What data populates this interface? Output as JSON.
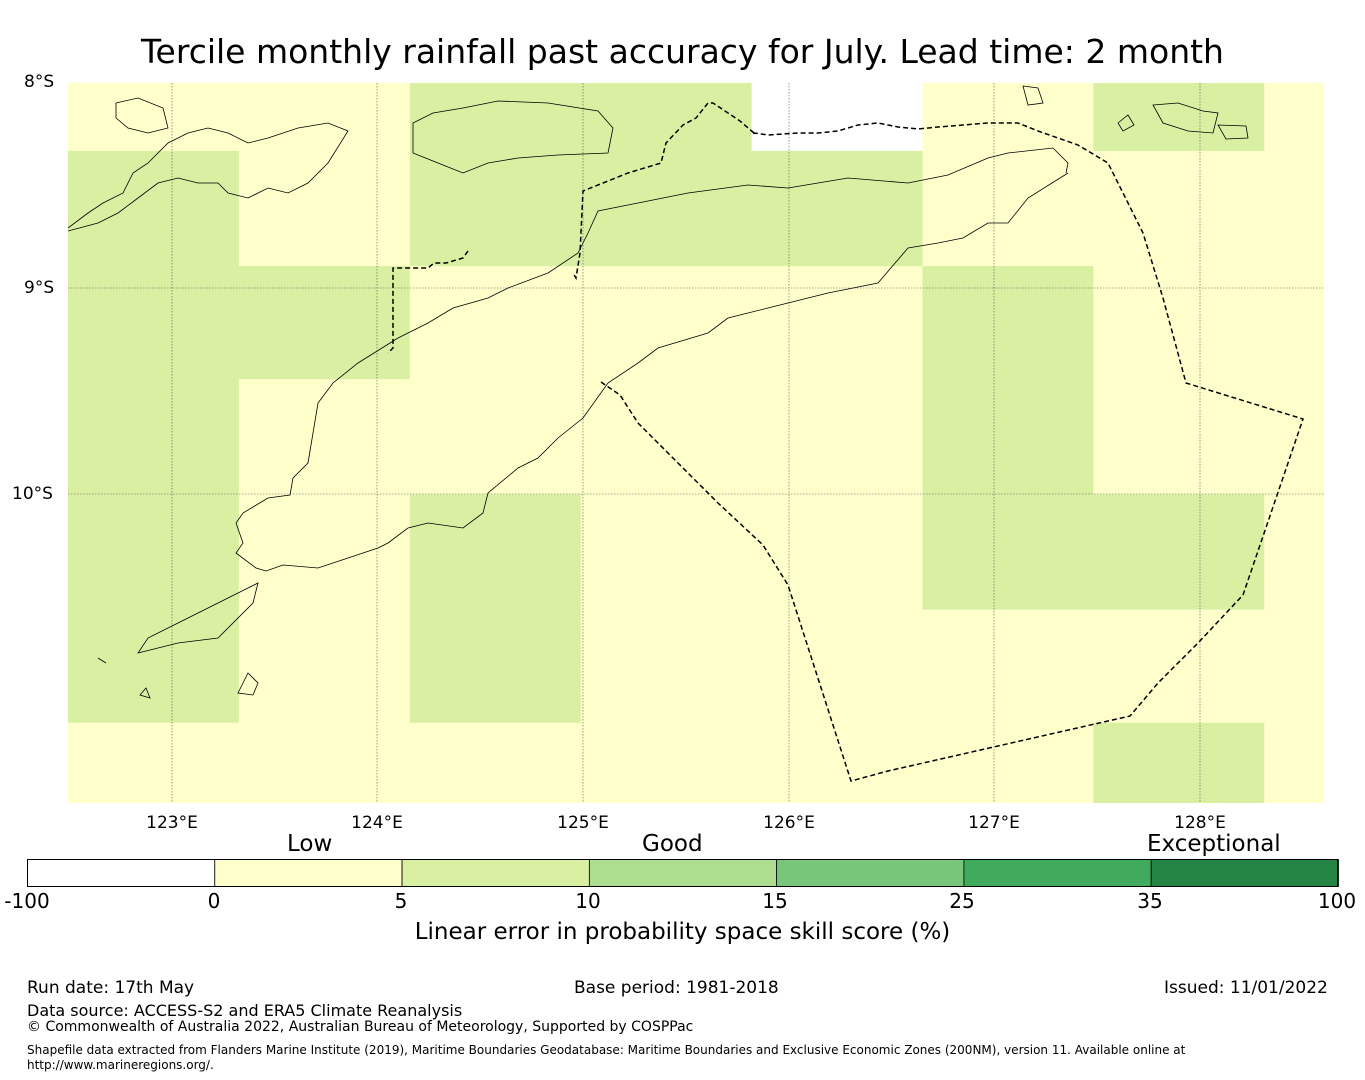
{
  "title": "Tercile monthly rainfall past accuracy for July. Lead time: 2 month",
  "map": {
    "lat_labels": [
      "8°S",
      "9°S",
      "10°S"
    ],
    "lon_labels": [
      "123°E",
      "124°E",
      "125°E",
      "126°E",
      "127°E",
      "128°E"
    ],
    "lon_range": [
      122.5,
      128.6
    ],
    "lat_range": [
      -8.0,
      -11.5
    ],
    "cell_size_deg": 0.83,
    "palette": {
      "-100": "#ffffff",
      "0": "#ffffcc",
      "5": "#d9f0a3"
    },
    "grid": [
      {
        "lat_band": [
          -8.0,
          -8.33
        ],
        "classes": [
          "0",
          "0",
          "5",
          "5",
          "-100",
          "0",
          "5",
          "0"
        ]
      },
      {
        "lat_band": [
          -8.33,
          -8.89
        ],
        "classes": [
          "5",
          "0",
          "5",
          "5",
          "5",
          "0",
          "0",
          "0"
        ]
      },
      {
        "lat_band": [
          -8.89,
          -9.44
        ],
        "classes": [
          "5",
          "5",
          "0",
          "0",
          "0",
          "5",
          "0",
          "0"
        ]
      },
      {
        "lat_band": [
          -9.44,
          -10.0
        ],
        "classes": [
          "5",
          "0",
          "0",
          "0",
          "0",
          "5",
          "0",
          "0"
        ]
      },
      {
        "lat_band": [
          -10.0,
          -10.56
        ],
        "classes": [
          "5",
          "0",
          "5",
          "0",
          "0",
          "5",
          "5",
          "0"
        ]
      },
      {
        "lat_band": [
          -10.56,
          -11.11
        ],
        "classes": [
          "5",
          "0",
          "5",
          "0",
          "0",
          "0",
          "0",
          "0"
        ]
      },
      {
        "lat_band": [
          -11.11,
          -11.5
        ],
        "classes": [
          "0",
          "0",
          "0",
          "0",
          "0",
          "0",
          "5",
          "0"
        ]
      }
    ],
    "gridlines": true
  },
  "colorbar": {
    "categories": [
      "Low",
      "Good",
      "Exceptional"
    ],
    "ticks": [
      "-100",
      "0",
      "5",
      "10",
      "15",
      "25",
      "35",
      "100"
    ],
    "colors": [
      "#ffffff",
      "#ffffcc",
      "#d9f0a3",
      "#addd8e",
      "#78c679",
      "#41ab5d",
      "#238443"
    ],
    "label": "Linear error in probability space skill score (%)"
  },
  "footer": {
    "run_date": "Run date: 17th May",
    "base_period": "Base period: 1981-2018",
    "issued": "Issued: 11/01/2022",
    "data_source": "Data source: ACCESS-S2 and ERA5 Climate Reanalysis",
    "copyright": "© Commonwealth of Australia 2022, Australian Bureau of Meteorology, Supported by COSPPac",
    "shapefile": "Shapefile data extracted from Flanders Marine Institute (2019), Maritime Boundaries Geodatabase: Maritime Boundaries and Exclusive Economic Zones (200NM), version 11. Available online at http://www.marineregions.org/."
  }
}
